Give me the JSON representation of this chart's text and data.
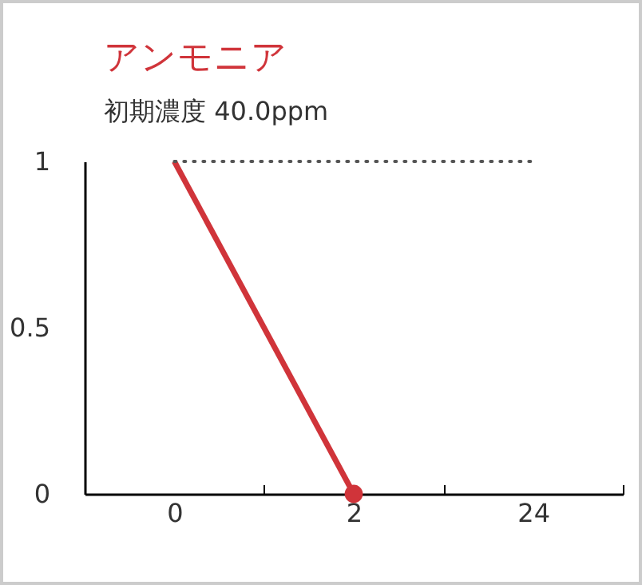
{
  "chart_data": {
    "type": "line",
    "title": "アンモニア",
    "subtitle": "初期濃度 40.0ppm",
    "categories": [
      "0",
      "2",
      "24"
    ],
    "ylim": [
      0,
      1
    ],
    "yticks": [
      0,
      0.5,
      1
    ],
    "series": [
      {
        "color": "#d0343a",
        "values": [
          1,
          0,
          null
        ]
      },
      {
        "type": "scatter",
        "color": "#d0343a",
        "x": [
          "2"
        ],
        "values": [
          0
        ],
        "marker": "circle"
      }
    ],
    "ref_lines": [
      {
        "axis": "y",
        "value": 1,
        "line_style": "dotted",
        "color": "#555555"
      }
    ]
  }
}
